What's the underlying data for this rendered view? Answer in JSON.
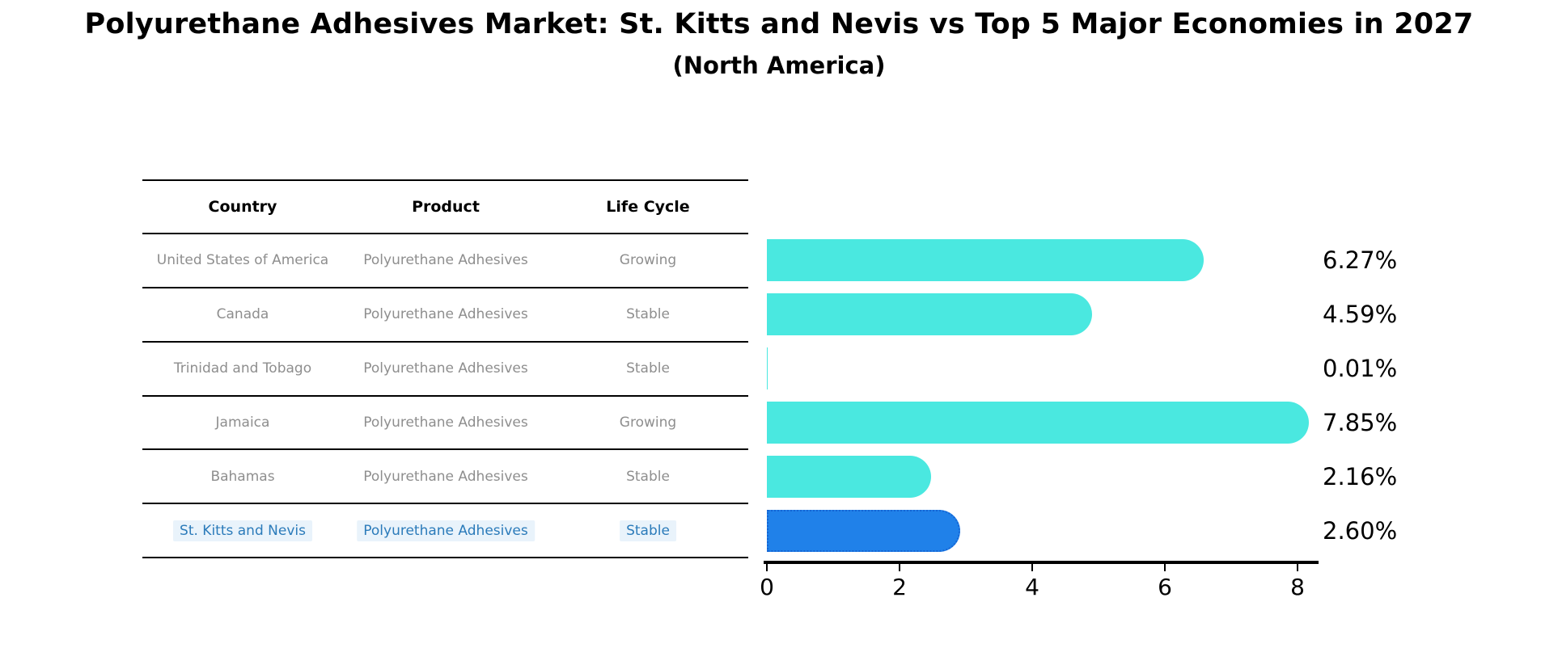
{
  "title": "Polyurethane Adhesives Market: St. Kitts and Nevis vs Top 5 Major Economies in 2027",
  "subtitle": "(North America)",
  "table": {
    "headers": [
      "Country",
      "Product",
      "Life Cycle"
    ],
    "rows": [
      {
        "country": "United States of America",
        "product": "Polyurethane Adhesives",
        "life_cycle": "Growing",
        "value_label": "6.27%",
        "highlight": false
      },
      {
        "country": "Canada",
        "product": "Polyurethane Adhesives",
        "life_cycle": "Stable",
        "value_label": "4.59%",
        "highlight": false
      },
      {
        "country": "Trinidad and Tobago",
        "product": "Polyurethane Adhesives",
        "life_cycle": "Stable",
        "value_label": "0.01%",
        "highlight": false
      },
      {
        "country": "Jamaica",
        "product": "Polyurethane Adhesives",
        "life_cycle": "Growing",
        "value_label": "7.85%",
        "highlight": false
      },
      {
        "country": "Bahamas",
        "product": "Polyurethane Adhesives",
        "life_cycle": "Stable",
        "value_label": "2.16%",
        "highlight": false
      },
      {
        "country": "St. Kitts and Nevis",
        "product": "Polyurethane Adhesives",
        "life_cycle": "Stable",
        "value_label": "2.60%",
        "highlight": true
      }
    ]
  },
  "chart_data": {
    "type": "bar",
    "orientation": "horizontal",
    "title": "Polyurethane Adhesives Market: St. Kitts and Nevis vs Top 5 Major Economies in 2027 (North America)",
    "categories": [
      "United States of America",
      "Canada",
      "Trinidad and Tobago",
      "Jamaica",
      "Bahamas",
      "St. Kitts and Nevis"
    ],
    "values": [
      6.27,
      4.59,
      0.01,
      7.85,
      2.16,
      2.6
    ],
    "value_labels": [
      "6.27%",
      "4.59%",
      "0.01%",
      "7.85%",
      "2.16%",
      "2.60%"
    ],
    "units": "%",
    "xlabel": "",
    "ylabel": "",
    "xlim": [
      0,
      8.3
    ],
    "xticks": [
      0,
      2,
      4,
      6,
      8
    ],
    "grid": false,
    "legend": null,
    "highlight_index": 5
  },
  "colors": {
    "bar": "#4ae8e0",
    "highlight_bar": "#2081e9",
    "highlight_bar_border": "#1565d4",
    "highlight_text": "#2b7bba",
    "highlight_text_bg": "#e9f3fb",
    "row_text": "#8e8e8e",
    "axis": "#000000",
    "background": "#ffffff"
  }
}
